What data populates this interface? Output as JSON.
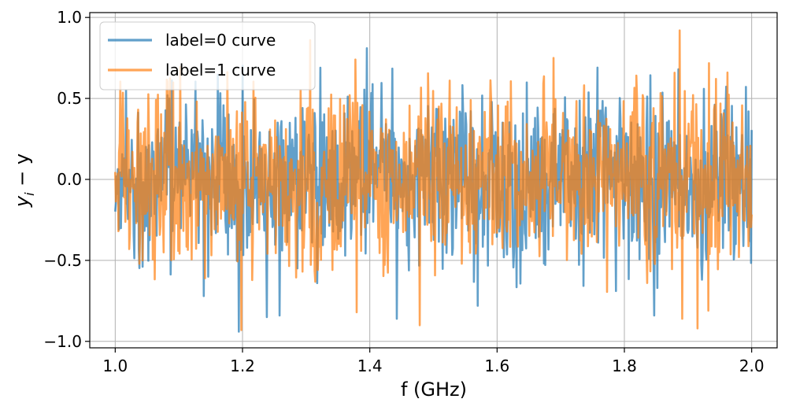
{
  "chart_data": {
    "type": "line",
    "title": "",
    "xlabel": "f (GHz)",
    "ylabel_main": "y",
    "ylabel_sub": "i",
    "ylabel_tail": " − y",
    "xlim": [
      0.96,
      2.04
    ],
    "ylim": [
      -1.04,
      1.03
    ],
    "xticks": [
      1.0,
      1.2,
      1.4,
      1.6,
      1.8,
      2.0
    ],
    "xtick_labels": [
      "1.0",
      "1.2",
      "1.4",
      "1.6",
      "1.8",
      "2.0"
    ],
    "yticks": [
      -1.0,
      -0.5,
      0.0,
      0.5,
      1.0
    ],
    "ytick_labels": [
      "−1.0",
      "−0.5",
      "0.0",
      "0.5",
      "1.0"
    ],
    "grid": true,
    "legend_position": "top-left",
    "x_start": 1.0,
    "x_end": 2.0,
    "n_points": 1000,
    "series": [
      {
        "name": "label=0 curve",
        "color": "#1f77b4",
        "opacity": 0.7,
        "seed": 17,
        "std": 0.27,
        "envelope": [
          [
            1.0,
            0.6
          ],
          [
            1.1,
            0.8
          ],
          [
            1.2,
            0.9
          ],
          [
            1.3,
            0.85
          ],
          [
            1.4,
            0.8
          ],
          [
            1.5,
            0.75
          ],
          [
            1.6,
            0.65
          ],
          [
            1.7,
            0.7
          ],
          [
            1.8,
            0.8
          ],
          [
            1.9,
            0.85
          ],
          [
            2.0,
            0.6
          ]
        ],
        "peaks": [
          [
            1.017,
            0.55
          ],
          [
            1.139,
            -0.72
          ],
          [
            1.194,
            -0.94
          ],
          [
            1.238,
            -0.85
          ],
          [
            1.258,
            -0.84
          ],
          [
            1.395,
            0.81
          ],
          [
            1.442,
            -0.86
          ],
          [
            1.57,
            -0.78
          ],
          [
            1.847,
            -0.84
          ],
          [
            1.758,
            0.69
          ],
          [
            1.885,
            0.68
          ],
          [
            1.995,
            0.42
          ]
        ]
      },
      {
        "name": "label=1 curve",
        "color": "#ff7f0e",
        "opacity": 0.7,
        "seed": 91,
        "std": 0.27,
        "envelope": [
          [
            1.0,
            0.6
          ],
          [
            1.1,
            0.75
          ],
          [
            1.2,
            0.9
          ],
          [
            1.3,
            0.85
          ],
          [
            1.4,
            0.8
          ],
          [
            1.5,
            0.75
          ],
          [
            1.6,
            0.65
          ],
          [
            1.7,
            0.7
          ],
          [
            1.8,
            0.8
          ],
          [
            1.9,
            0.95
          ],
          [
            2.0,
            0.6
          ]
        ],
        "peaks": [
          [
            1.198,
            -0.93
          ],
          [
            1.306,
            0.86
          ],
          [
            1.377,
            0.74
          ],
          [
            1.379,
            -0.82
          ],
          [
            1.478,
            -0.9
          ],
          [
            1.689,
            0.75
          ],
          [
            1.887,
            0.92
          ],
          [
            1.891,
            -0.86
          ],
          [
            1.915,
            -0.92
          ],
          [
            1.932,
            -0.81
          ],
          [
            1.962,
            0.66
          ]
        ]
      }
    ]
  }
}
